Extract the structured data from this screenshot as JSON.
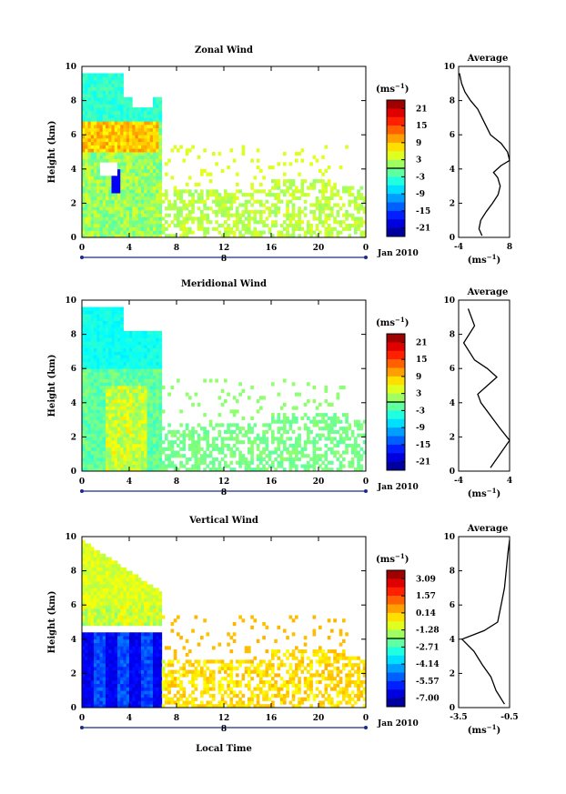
{
  "date_label": "Jan 2010",
  "day_label": "8",
  "colorbar_unit": "(ms",
  "unit_sup": "−1",
  "unit_close": ")",
  "ylabel": "Height (km)",
  "xlabel": "Local Time",
  "avg_title": "Average",
  "time_ticks": [
    "0",
    "4",
    "8",
    "12",
    "16",
    "20",
    "0"
  ],
  "height_ticks": [
    "0",
    "2",
    "4",
    "6",
    "8",
    "10"
  ],
  "chart_data": [
    {
      "type": "heatmap",
      "title": "Zonal Wind",
      "ylabel": "Height (km)",
      "xlim": [
        0,
        24
      ],
      "ylim": [
        0,
        10
      ],
      "colorbar": {
        "labels": [
          "21",
          "15",
          "9",
          "3",
          "-3",
          "-9",
          "-15",
          "-21"
        ],
        "range": [
          -24,
          24
        ]
      },
      "average": {
        "title": "Average",
        "xlabel": "(ms−1)",
        "xticks": [
          "-4",
          "8"
        ],
        "xlim": [
          -4,
          8
        ],
        "profile": [
          [
            1.5,
            0.1
          ],
          [
            0.8,
            0.5
          ],
          [
            1.2,
            1
          ],
          [
            2.5,
            1.5
          ],
          [
            4,
            2
          ],
          [
            5.3,
            2.5
          ],
          [
            5.8,
            3
          ],
          [
            5.2,
            3.5
          ],
          [
            4.2,
            3.8
          ],
          [
            6,
            4.2
          ],
          [
            8,
            4.5
          ],
          [
            7.5,
            5
          ],
          [
            6,
            5.5
          ],
          [
            3.5,
            6
          ],
          [
            1.5,
            7
          ],
          [
            0.5,
            7.5
          ],
          [
            -1.2,
            8
          ],
          [
            -2.5,
            8.5
          ],
          [
            -3.3,
            9
          ],
          [
            -3.8,
            9.6
          ]
        ]
      }
    },
    {
      "type": "heatmap",
      "title": "Meridional Wind",
      "ylabel": "Height (km)",
      "xlim": [
        0,
        24
      ],
      "ylim": [
        0,
        10
      ],
      "colorbar": {
        "labels": [
          "21",
          "15",
          "9",
          "3",
          "-3",
          "-9",
          "-15",
          "-21"
        ],
        "range": [
          -24,
          24
        ]
      },
      "average": {
        "title": "Average",
        "xlabel": "(ms−1)",
        "xticks": [
          "-4",
          "4"
        ],
        "xlim": [
          -4,
          4
        ],
        "profile": [
          [
            1,
            0.2
          ],
          [
            2.5,
            1
          ],
          [
            4,
            1.8
          ],
          [
            2.5,
            2.5
          ],
          [
            1.5,
            3
          ],
          [
            0.5,
            3.5
          ],
          [
            -0.5,
            4
          ],
          [
            -1,
            4.5
          ],
          [
            0.5,
            5
          ],
          [
            2,
            5.5
          ],
          [
            0.5,
            6
          ],
          [
            -1.5,
            6.5
          ],
          [
            -3.2,
            7.5
          ],
          [
            -1.5,
            8.5
          ],
          [
            -2.5,
            9.5
          ]
        ]
      }
    },
    {
      "type": "heatmap",
      "title": "Vertical Wind",
      "ylabel": "Height (km)",
      "xlabel": "Local Time",
      "xlim": [
        0,
        24
      ],
      "ylim": [
        0,
        10
      ],
      "colorbar": {
        "labels": [
          "3.09",
          "1.57",
          "0.14",
          "-1.28",
          "-2.71",
          "-4.14",
          "-5.57",
          "-7.00"
        ],
        "range": [
          -8,
          4
        ]
      },
      "average": {
        "title": "Average",
        "xlabel": "(ms−1)",
        "xticks": [
          "-3.5",
          "-0.5"
        ],
        "xlim": [
          -3.5,
          -0.5
        ],
        "profile": [
          [
            -0.8,
            0.2
          ],
          [
            -1.3,
            1
          ],
          [
            -1.6,
            1.8
          ],
          [
            -2.1,
            2.5
          ],
          [
            -2.6,
            3.3
          ],
          [
            -3.3,
            4
          ],
          [
            -2.0,
            4.5
          ],
          [
            -1.2,
            5
          ],
          [
            -1.0,
            6
          ],
          [
            -0.8,
            7
          ],
          [
            -0.7,
            8
          ],
          [
            -0.6,
            9
          ],
          [
            -0.5,
            9.8
          ]
        ]
      }
    }
  ]
}
